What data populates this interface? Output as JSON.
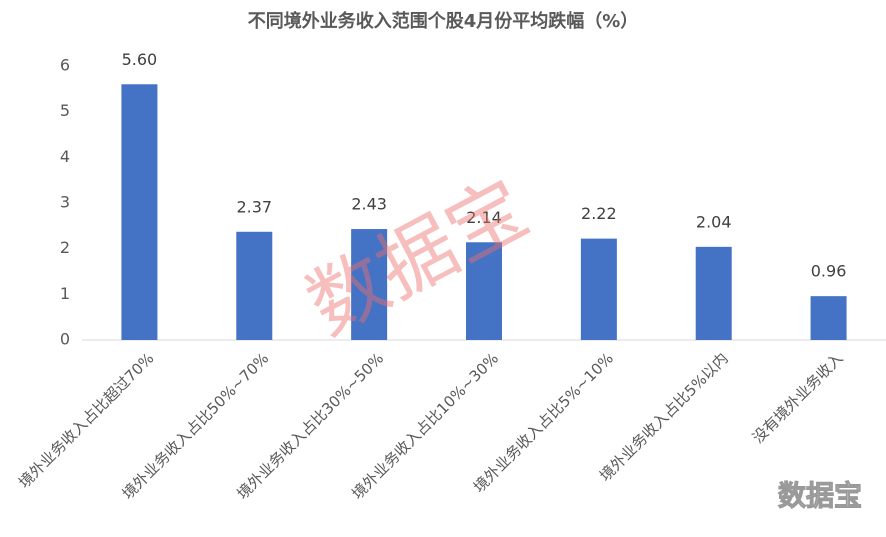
{
  "chart_data": {
    "type": "bar",
    "title": "不同境外业务收入范围个股4月份平均跌幅（%）",
    "categories": [
      "境外业务收入占比超过70%",
      "境外业务收入占比50%~70%",
      "境外业务收入占比30%~50%",
      "境外业务收入占比10%~30%",
      "境外业务收入占比5%~10%",
      "境外业务收入占比5%以内",
      "没有境外业务收入"
    ],
    "values": [
      5.6,
      2.37,
      2.43,
      2.14,
      2.22,
      2.04,
      0.96
    ],
    "value_labels": [
      "5.60",
      "2.37",
      "2.43",
      "2.14",
      "2.22",
      "2.04",
      "0.96"
    ],
    "color": "#4472c4",
    "ylim": [
      0,
      6
    ],
    "yticks": [
      0,
      1,
      2,
      3,
      4,
      5,
      6
    ],
    "grid": false,
    "watermark": "数据宝"
  }
}
